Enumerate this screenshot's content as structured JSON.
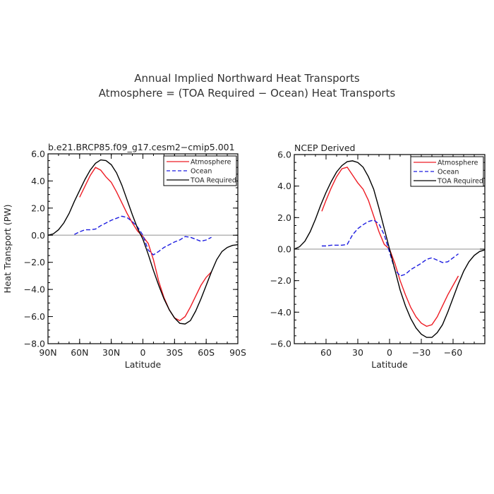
{
  "figure": {
    "title_line1": "Annual Implied Northward Heat Transports",
    "title_line2": "Atmosphere = (TOA Required − Ocean) Heat Transports"
  },
  "chart_data": [
    {
      "type": "line",
      "subtitle": "b.e21.BRCP85.f09_g17.cesm2−cmip5.001",
      "xlabel": "Latitude",
      "ylabel": "Heat Transport (PW)",
      "xlim": [
        90,
        -90
      ],
      "ylim": [
        -8.0,
        6.0
      ],
      "x_ticks": [
        {
          "value": 90,
          "label": "90N"
        },
        {
          "value": 60,
          "label": "60N"
        },
        {
          "value": 30,
          "label": "30N"
        },
        {
          "value": 0,
          "label": "0"
        },
        {
          "value": -30,
          "label": "30S"
        },
        {
          "value": -60,
          "label": "60S"
        },
        {
          "value": -90,
          "label": "90S"
        }
      ],
      "y_ticks": [
        {
          "value": 6,
          "label": "6.0"
        },
        {
          "value": 4,
          "label": "4.0"
        },
        {
          "value": 2,
          "label": "2.0"
        },
        {
          "value": 0,
          "label": "0.0"
        },
        {
          "value": -2,
          "label": "−2.0"
        },
        {
          "value": -4,
          "label": "−4.0"
        },
        {
          "value": -6,
          "label": "−6.0"
        },
        {
          "value": -8,
          "label": "−8.0"
        }
      ],
      "zero_line": true,
      "legend_position": "top-right",
      "series": [
        {
          "name": "Atmosphere",
          "color": "#ee1c24",
          "dash": "solid",
          "x": [
            60,
            55,
            50,
            45,
            40,
            35,
            30,
            25,
            20,
            15,
            10,
            5,
            0,
            -5,
            -10,
            -15,
            -20,
            -25,
            -30,
            -35,
            -40,
            -45,
            -50,
            -55,
            -60,
            -65
          ],
          "y": [
            2.8,
            3.6,
            4.4,
            5.0,
            4.8,
            4.3,
            3.9,
            3.2,
            2.4,
            1.6,
            0.9,
            0.3,
            -0.1,
            -0.6,
            -1.8,
            -3.4,
            -4.6,
            -5.5,
            -6.1,
            -6.3,
            -6.0,
            -5.3,
            -4.5,
            -3.7,
            -3.1,
            -2.7
          ]
        },
        {
          "name": "Ocean",
          "color": "#1c1ce0",
          "dash": "dashed",
          "x": [
            65,
            60,
            55,
            50,
            45,
            40,
            35,
            30,
            25,
            20,
            15,
            10,
            5,
            0,
            -5,
            -10,
            -15,
            -20,
            -25,
            -30,
            -35,
            -40,
            -45,
            -50,
            -55,
            -60,
            -65
          ],
          "y": [
            0.05,
            0.25,
            0.4,
            0.4,
            0.45,
            0.7,
            0.9,
            1.1,
            1.25,
            1.4,
            1.3,
            1.0,
            0.6,
            0.0,
            -1.1,
            -1.45,
            -1.2,
            -0.9,
            -0.7,
            -0.5,
            -0.35,
            -0.1,
            -0.15,
            -0.3,
            -0.45,
            -0.35,
            -0.15
          ]
        },
        {
          "name": "TOA Required",
          "color": "#000000",
          "dash": "solid",
          "x": [
            90,
            85,
            80,
            75,
            70,
            65,
            60,
            55,
            50,
            45,
            40,
            35,
            30,
            25,
            20,
            15,
            10,
            5,
            0,
            -5,
            -10,
            -15,
            -20,
            -25,
            -30,
            -35,
            -40,
            -45,
            -50,
            -55,
            -60,
            -65,
            -70,
            -75,
            -80,
            -85,
            -90
          ],
          "y": [
            0.0,
            0.1,
            0.4,
            0.9,
            1.6,
            2.5,
            3.3,
            4.1,
            4.8,
            5.3,
            5.55,
            5.5,
            5.2,
            4.6,
            3.7,
            2.6,
            1.5,
            0.5,
            -0.3,
            -1.4,
            -2.6,
            -3.7,
            -4.7,
            -5.5,
            -6.1,
            -6.5,
            -6.55,
            -6.3,
            -5.6,
            -4.7,
            -3.7,
            -2.7,
            -1.8,
            -1.2,
            -0.9,
            -0.75,
            -0.7
          ]
        }
      ]
    },
    {
      "type": "line",
      "subtitle": "NCEP Derived",
      "xlabel": "Latitude",
      "ylabel": "",
      "xlim": [
        90,
        -90
      ],
      "ylim": [
        -6.0,
        6.0
      ],
      "x_ticks": [
        {
          "value": 60,
          "label": "60"
        },
        {
          "value": 30,
          "label": "30"
        },
        {
          "value": 0,
          "label": "0"
        },
        {
          "value": -30,
          "label": "−30"
        },
        {
          "value": -60,
          "label": "−60"
        }
      ],
      "y_ticks": [
        {
          "value": 6,
          "label": "6.0"
        },
        {
          "value": 4,
          "label": "4.0"
        },
        {
          "value": 2,
          "label": "2.0"
        },
        {
          "value": 0,
          "label": "0.0"
        },
        {
          "value": -2,
          "label": "−2.0"
        },
        {
          "value": -4,
          "label": "−4.0"
        },
        {
          "value": -6,
          "label": "−6.0"
        }
      ],
      "zero_line": true,
      "legend_position": "top-right",
      "series": [
        {
          "name": "Atmosphere",
          "color": "#ee1c24",
          "dash": "solid",
          "x": [
            64,
            60,
            55,
            50,
            45,
            40,
            35,
            30,
            25,
            20,
            15,
            10,
            5,
            0,
            -5,
            -10,
            -15,
            -20,
            -25,
            -30,
            -35,
            -40,
            -45,
            -50,
            -55,
            -60,
            -65
          ],
          "y": [
            2.4,
            3.1,
            3.9,
            4.6,
            5.1,
            5.2,
            4.7,
            4.2,
            3.8,
            3.1,
            2.1,
            1.1,
            0.3,
            0.0,
            -0.9,
            -2.0,
            -2.9,
            -3.7,
            -4.3,
            -4.7,
            -4.9,
            -4.8,
            -4.3,
            -3.6,
            -2.9,
            -2.3,
            -1.7
          ]
        },
        {
          "name": "Ocean",
          "color": "#1c1ce0",
          "dash": "dashed",
          "x": [
            64,
            60,
            55,
            50,
            45,
            40,
            35,
            30,
            25,
            20,
            15,
            10,
            5,
            0,
            -5,
            -10,
            -15,
            -20,
            -25,
            -30,
            -35,
            -40,
            -45,
            -50,
            -55,
            -60,
            -65
          ],
          "y": [
            0.2,
            0.2,
            0.25,
            0.25,
            0.25,
            0.3,
            0.9,
            1.3,
            1.55,
            1.75,
            1.85,
            1.6,
            0.9,
            -0.2,
            -1.3,
            -1.7,
            -1.6,
            -1.3,
            -1.1,
            -0.9,
            -0.65,
            -0.55,
            -0.7,
            -0.85,
            -0.8,
            -0.55,
            -0.3
          ]
        },
        {
          "name": "TOA Required",
          "color": "#000000",
          "dash": "solid",
          "x": [
            90,
            85,
            80,
            75,
            70,
            65,
            60,
            55,
            50,
            45,
            40,
            35,
            30,
            25,
            20,
            15,
            10,
            5,
            0,
            -5,
            -10,
            -15,
            -20,
            -25,
            -30,
            -35,
            -40,
            -45,
            -50,
            -55,
            -60,
            -65,
            -70,
            -75,
            -80,
            -85,
            -90
          ],
          "y": [
            0.0,
            0.15,
            0.5,
            1.1,
            1.9,
            2.8,
            3.6,
            4.3,
            4.9,
            5.3,
            5.55,
            5.6,
            5.5,
            5.2,
            4.6,
            3.8,
            2.6,
            1.3,
            0.0,
            -1.3,
            -2.6,
            -3.6,
            -4.4,
            -5.0,
            -5.4,
            -5.6,
            -5.6,
            -5.3,
            -4.8,
            -4.0,
            -3.1,
            -2.2,
            -1.4,
            -0.8,
            -0.4,
            -0.15,
            -0.05
          ]
        }
      ]
    }
  ]
}
